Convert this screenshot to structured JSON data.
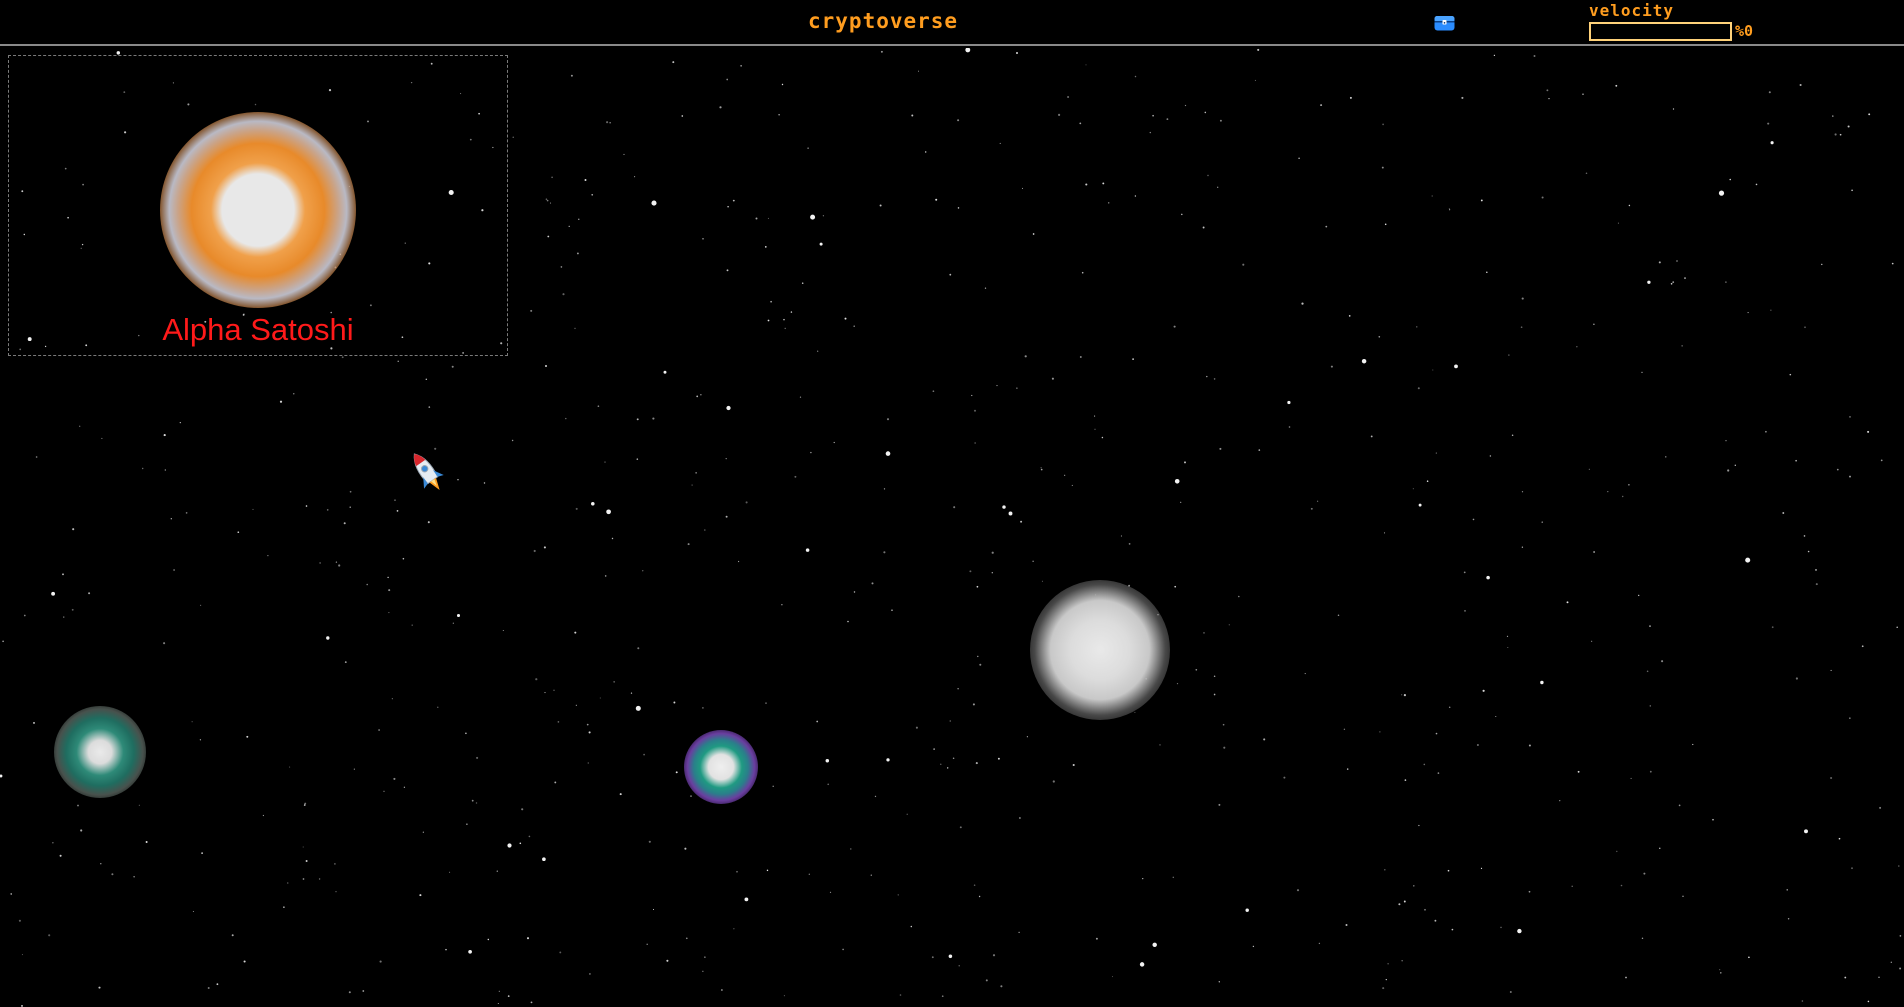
{
  "header": {
    "title": "cryptoverse",
    "chest_icon": "treasure-chest-icon",
    "velocity": {
      "label": "velocity",
      "value_text": "%0",
      "fraction": 0.0
    }
  },
  "selected_planet": {
    "name": "Alpha Satoshi"
  },
  "planets": [
    {
      "id": "alpha-satoshi",
      "glow": "orange"
    },
    {
      "id": "white-planet",
      "glow": "white"
    },
    {
      "id": "teal-planet",
      "glow": "teal"
    },
    {
      "id": "violet-planet",
      "glow": "violet"
    }
  ],
  "ship": {
    "icon": "rocket-icon"
  },
  "colors": {
    "background": "#000000",
    "accent": "#ff9d1f",
    "selected_name": "#ff1a1a",
    "chest": "#2a8cff"
  }
}
